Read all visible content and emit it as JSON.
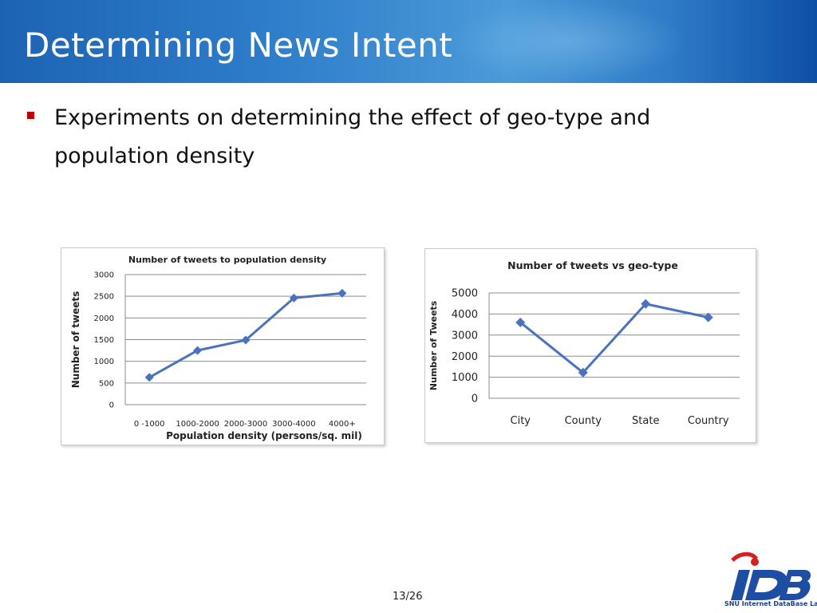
{
  "slide": {
    "title": "Determining  News  Intent",
    "bullet": "Experiments on determining the effect of geo-type and population density",
    "page_number": "13/26"
  },
  "logo": {
    "text": "iDB",
    "subtitle": "SNU Internet DataBase Lab."
  },
  "colors": {
    "header_blue": "#2f7fcb",
    "bullet_red": "#c00000",
    "series_blue": "#4a72be"
  },
  "chart_data": [
    {
      "type": "line",
      "title": "Number of tweets to population density",
      "xlabel": "Population density (persons/sq. mil)",
      "ylabel": "Number of tweets",
      "categories": [
        "0 -1000",
        "1000-2000",
        "2000-3000",
        "3000-4000",
        "4000+"
      ],
      "values": [
        630,
        1250,
        1490,
        2460,
        2570
      ],
      "ylim": [
        0,
        3000
      ],
      "yticks": [
        0,
        500,
        1000,
        1500,
        2000,
        2500,
        3000
      ],
      "grid": true,
      "legend": "none"
    },
    {
      "type": "line",
      "title": "Number of tweets vs geo-type",
      "xlabel": "",
      "ylabel": "Number of Tweets",
      "categories": [
        "City",
        "County",
        "State",
        "Country"
      ],
      "values": [
        3600,
        1220,
        4480,
        3840
      ],
      "ylim": [
        0,
        5000
      ],
      "yticks": [
        0,
        1000,
        2000,
        3000,
        4000,
        5000
      ],
      "grid": true,
      "legend": "none"
    }
  ]
}
